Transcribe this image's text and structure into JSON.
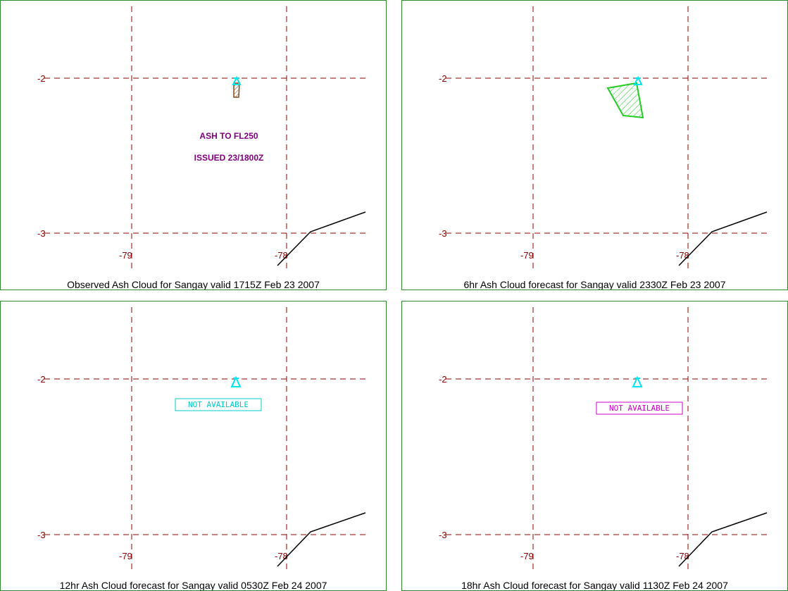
{
  "colors": {
    "panel_border": "#2e8b2e",
    "gridline": "#8b0000",
    "tick_label": "#8b0000",
    "volcano": "#00e5ee",
    "coastline": "#000000",
    "obs_ash": "#8b4513",
    "forecast_ash": "#22cc22",
    "note_text": "#800080",
    "na_cyan": "#00cccc",
    "na_magenta": "#cc00cc"
  },
  "axis_labels": {
    "lat_top": "-2",
    "lat_bottom": "-3",
    "lon_left": "-79",
    "lon_right": "-78"
  },
  "volcano": {
    "name": "Sangay",
    "icon": "volcano-triangle-icon"
  },
  "panels": [
    {
      "caption": "Observed Ash Cloud for Sangay valid 1715Z Feb 23 2007",
      "notes": [
        "ASH TO FL250",
        "ISSUED 23/1800Z"
      ],
      "ash_type": "observed",
      "not_available": ""
    },
    {
      "caption": "6hr Ash Cloud forecast for Sangay valid 2330Z Feb 23 2007",
      "notes": [],
      "ash_type": "forecast",
      "not_available": ""
    },
    {
      "caption": "12hr Ash Cloud forecast for Sangay valid 0530Z Feb 24 2007",
      "notes": [],
      "ash_type": "none",
      "not_available": "NOT AVAILABLE"
    },
    {
      "caption": "18hr Ash Cloud forecast for Sangay valid 1130Z Feb 24 2007",
      "notes": [],
      "ash_type": "none",
      "not_available": "NOT AVAILABLE"
    }
  ]
}
